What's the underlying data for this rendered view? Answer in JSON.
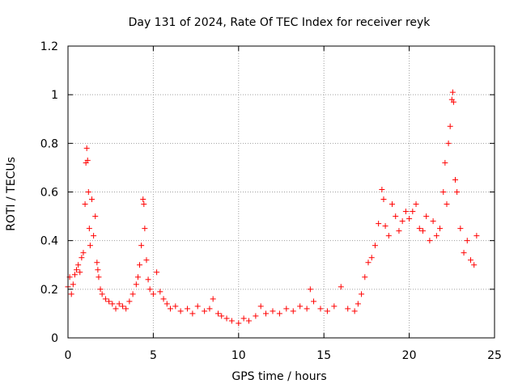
{
  "chart_data": {
    "type": "scatter",
    "title": "Day 131 of 2024, Rate Of TEC Index for receiver reyk",
    "xlabel": "GPS time / hours",
    "ylabel": "ROTI / TECUs",
    "xlim": [
      0,
      25
    ],
    "ylim": [
      0,
      1.2
    ],
    "x_ticks": [
      0,
      5,
      10,
      15,
      20,
      25
    ],
    "x_tick_labels": [
      "0",
      "5",
      "10",
      "15",
      "20",
      "25"
    ],
    "y_ticks": [
      0,
      0.2,
      0.4,
      0.6,
      0.8,
      1,
      1.2
    ],
    "y_tick_labels": [
      "0",
      "0.2",
      "0.4",
      "0.6",
      "0.8",
      "1",
      "1.2"
    ],
    "grid": true,
    "marker": "+",
    "color": "#ff0000",
    "series": [
      {
        "name": "ROTI",
        "x": [
          0.0,
          0.1,
          0.2,
          0.3,
          0.4,
          0.5,
          0.6,
          0.7,
          0.8,
          0.9,
          1.0,
          1.05,
          1.1,
          1.15,
          1.2,
          1.25,
          1.3,
          1.4,
          1.5,
          1.6,
          1.7,
          1.75,
          1.8,
          1.9,
          2.0,
          2.2,
          2.4,
          2.6,
          2.8,
          3.0,
          3.2,
          3.4,
          3.6,
          3.8,
          4.0,
          4.1,
          4.2,
          4.3,
          4.4,
          4.45,
          4.5,
          4.6,
          4.7,
          4.8,
          5.0,
          5.2,
          5.4,
          5.6,
          5.8,
          6.0,
          6.3,
          6.6,
          7.0,
          7.3,
          7.6,
          8.0,
          8.3,
          8.5,
          8.8,
          9.0,
          9.3,
          9.6,
          10.0,
          10.3,
          10.6,
          11.0,
          11.3,
          11.6,
          12.0,
          12.4,
          12.8,
          13.2,
          13.6,
          14.0,
          14.2,
          14.4,
          14.8,
          15.2,
          15.6,
          16.0,
          16.4,
          16.8,
          17.0,
          17.2,
          17.4,
          17.6,
          17.8,
          18.0,
          18.2,
          18.4,
          18.5,
          18.6,
          18.8,
          19.0,
          19.2,
          19.4,
          19.6,
          19.8,
          20.0,
          20.2,
          20.4,
          20.6,
          20.8,
          21.0,
          21.2,
          21.4,
          21.6,
          21.8,
          22.0,
          22.1,
          22.2,
          22.3,
          22.4,
          22.5,
          22.55,
          22.6,
          22.7,
          22.8,
          23.0,
          23.2,
          23.4,
          23.6,
          23.8,
          23.95
        ],
        "y": [
          0.21,
          0.25,
          0.18,
          0.22,
          0.26,
          0.28,
          0.3,
          0.27,
          0.33,
          0.35,
          0.55,
          0.72,
          0.78,
          0.73,
          0.6,
          0.45,
          0.38,
          0.57,
          0.42,
          0.5,
          0.31,
          0.28,
          0.25,
          0.2,
          0.18,
          0.16,
          0.15,
          0.14,
          0.12,
          0.14,
          0.13,
          0.12,
          0.15,
          0.18,
          0.22,
          0.25,
          0.3,
          0.38,
          0.57,
          0.55,
          0.45,
          0.32,
          0.24,
          0.2,
          0.18,
          0.27,
          0.19,
          0.16,
          0.14,
          0.12,
          0.13,
          0.11,
          0.12,
          0.1,
          0.13,
          0.11,
          0.12,
          0.16,
          0.1,
          0.09,
          0.08,
          0.07,
          0.06,
          0.08,
          0.07,
          0.09,
          0.13,
          0.1,
          0.11,
          0.1,
          0.12,
          0.11,
          0.13,
          0.12,
          0.2,
          0.15,
          0.12,
          0.11,
          0.13,
          0.21,
          0.12,
          0.11,
          0.14,
          0.18,
          0.25,
          0.31,
          0.33,
          0.38,
          0.47,
          0.61,
          0.57,
          0.46,
          0.42,
          0.55,
          0.5,
          0.44,
          0.48,
          0.52,
          0.49,
          0.52,
          0.55,
          0.45,
          0.44,
          0.5,
          0.4,
          0.48,
          0.42,
          0.45,
          0.6,
          0.72,
          0.55,
          0.8,
          0.87,
          0.98,
          1.01,
          0.97,
          0.65,
          0.6,
          0.45,
          0.35,
          0.4,
          0.32,
          0.3,
          0.42
        ]
      }
    ]
  }
}
